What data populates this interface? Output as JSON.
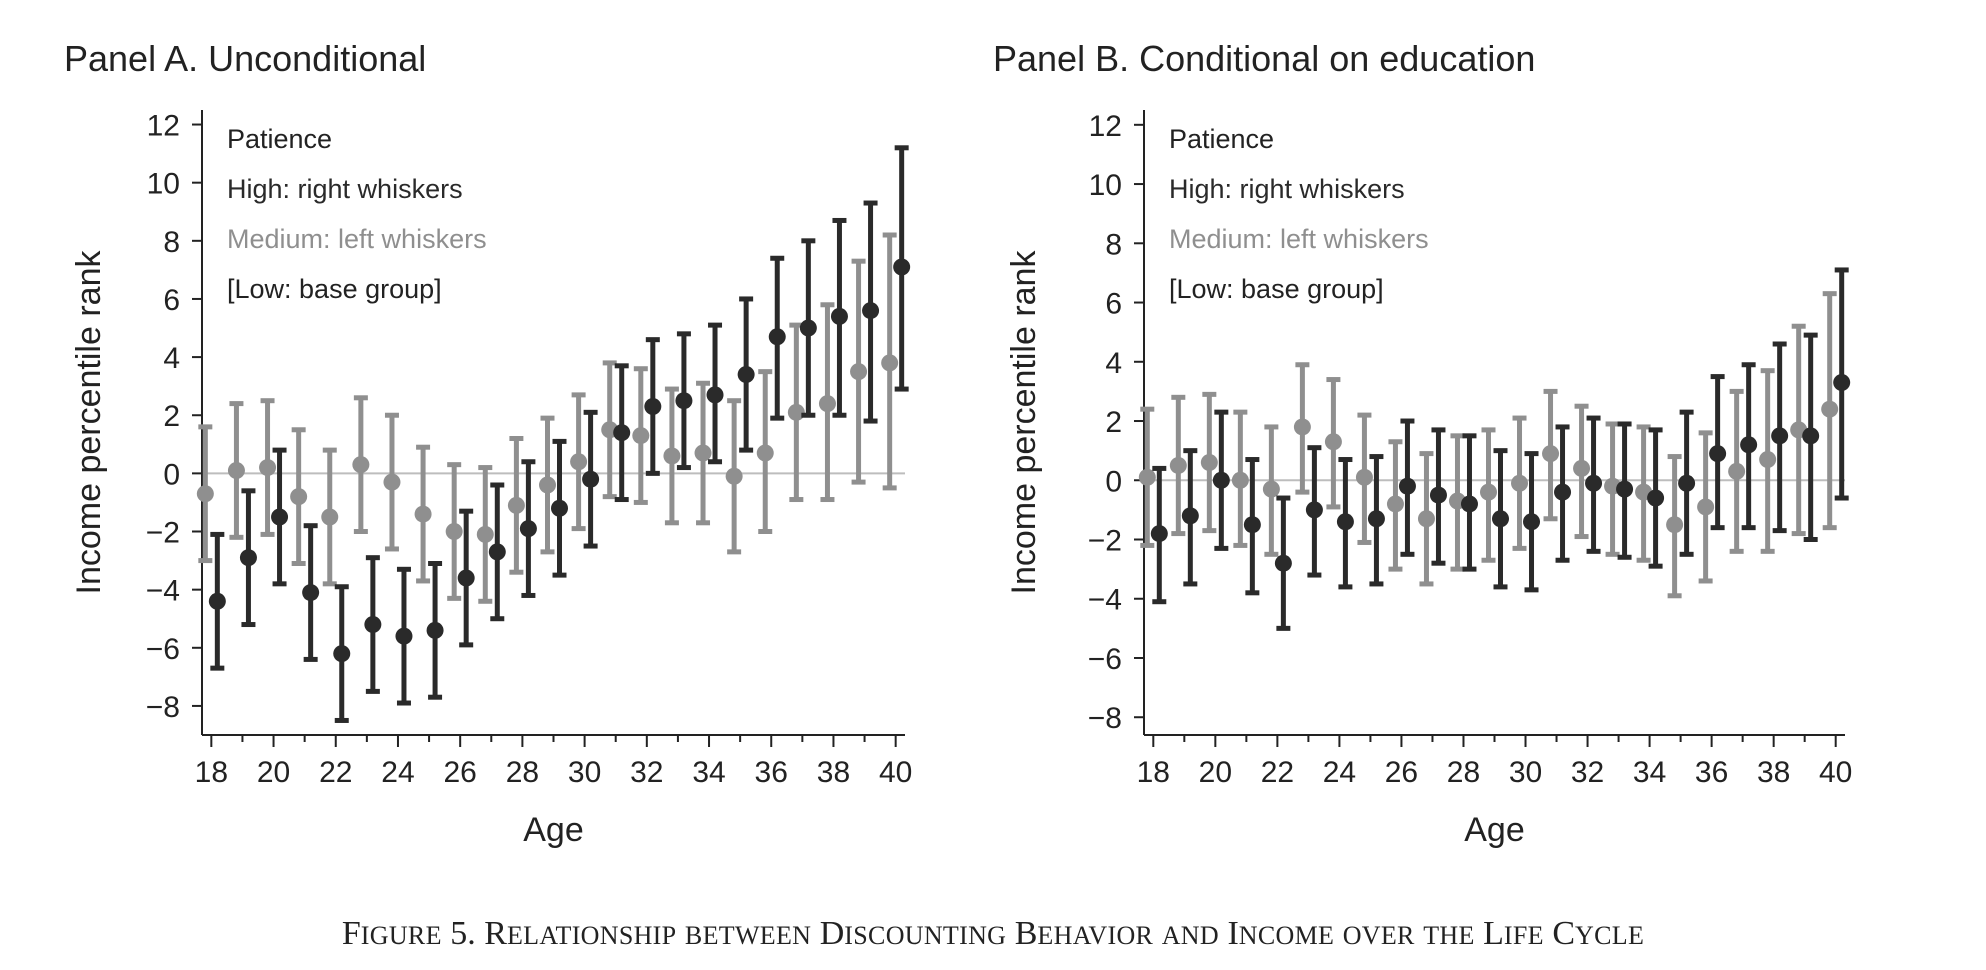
{
  "caption": "Figure 5. Relationship between Discounting Behavior and Income over the Life Cycle",
  "colors": {
    "high": "#2a2a2a",
    "medium": "#8f8f8f",
    "axis": "#222222",
    "zero_line": "#bdbdbd"
  },
  "chart_data": [
    {
      "type": "scatter",
      "title": "Panel A. Unconditional",
      "xlabel": "Age",
      "ylabel": "Income percentile rank",
      "xlim": [
        17.7,
        40.3
      ],
      "ylim": [
        -9,
        12.5
      ],
      "xticks": [
        18,
        20,
        22,
        24,
        26,
        28,
        30,
        32,
        34,
        36,
        38,
        40
      ],
      "yticks": [
        -8,
        -6,
        -4,
        -2,
        0,
        2,
        4,
        6,
        8,
        10,
        12
      ],
      "ytick_labels": [
        "−8",
        "−6",
        "−4",
        "−2",
        "0",
        "2",
        "4",
        "6",
        "8",
        "10",
        "12"
      ],
      "grid": false,
      "zero_line": true,
      "legend": {
        "position": "top-left",
        "title": "Patience",
        "entries": [
          "High: right whiskers",
          "Medium: left whiskers",
          "[Low: base group]"
        ]
      },
      "series": [
        {
          "name": "High: right whiskers",
          "x": [
            18,
            19,
            20,
            21,
            22,
            23,
            24,
            25,
            26,
            27,
            28,
            29,
            30,
            31,
            32,
            33,
            34,
            35,
            36,
            37,
            38,
            39,
            40
          ],
          "y": [
            -4.4,
            -2.9,
            -1.5,
            -4.1,
            -6.2,
            -5.2,
            -5.6,
            -5.4,
            -3.6,
            -2.7,
            -1.9,
            -1.2,
            -0.2,
            1.4,
            2.3,
            2.5,
            2.7,
            3.4,
            4.7,
            5.0,
            5.4,
            5.6,
            7.1
          ],
          "ci_low": [
            -6.7,
            -5.2,
            -3.8,
            -6.4,
            -8.5,
            -7.5,
            -7.9,
            -7.7,
            -5.9,
            -5.0,
            -4.2,
            -3.5,
            -2.5,
            -0.9,
            0.0,
            0.2,
            0.4,
            0.8,
            1.9,
            2.0,
            2.0,
            1.8,
            2.9
          ],
          "ci_high": [
            -2.1,
            -0.6,
            0.8,
            -1.8,
            -3.9,
            -2.9,
            -3.3,
            -3.1,
            -1.3,
            -0.4,
            0.4,
            1.1,
            2.1,
            3.7,
            4.6,
            4.8,
            5.1,
            6.0,
            7.4,
            8.0,
            8.7,
            9.3,
            11.2
          ]
        },
        {
          "name": "Medium: left whiskers",
          "x": [
            18,
            19,
            20,
            21,
            22,
            23,
            24,
            25,
            26,
            27,
            28,
            29,
            30,
            31,
            32,
            33,
            34,
            35,
            36,
            37,
            38,
            39,
            40
          ],
          "y": [
            -0.7,
            0.1,
            0.2,
            -0.8,
            -1.5,
            0.3,
            -0.3,
            -1.4,
            -2.0,
            -2.1,
            -1.1,
            -0.4,
            0.4,
            1.5,
            1.3,
            0.6,
            0.7,
            -0.1,
            0.7,
            2.1,
            2.4,
            3.5,
            3.8
          ],
          "ci_low": [
            -3.0,
            -2.2,
            -2.1,
            -3.1,
            -3.8,
            -2.0,
            -2.6,
            -3.7,
            -4.3,
            -4.4,
            -3.4,
            -2.7,
            -1.9,
            -0.8,
            -1.0,
            -1.7,
            -1.7,
            -2.7,
            -2.0,
            -0.9,
            -0.9,
            -0.3,
            -0.5
          ],
          "ci_high": [
            1.6,
            2.4,
            2.5,
            1.5,
            0.8,
            2.6,
            2.0,
            0.9,
            0.3,
            0.2,
            1.2,
            1.9,
            2.7,
            3.8,
            3.6,
            2.9,
            3.1,
            2.5,
            3.5,
            5.1,
            5.8,
            7.3,
            8.2
          ]
        }
      ]
    },
    {
      "type": "scatter",
      "title": "Panel B. Conditional on education",
      "xlabel": "Age",
      "ylabel": "Income percentile rank",
      "xlim": [
        17.7,
        40.3
      ],
      "ylim": [
        -8.6,
        12.5
      ],
      "xticks": [
        18,
        20,
        22,
        24,
        26,
        28,
        30,
        32,
        34,
        36,
        38,
        40
      ],
      "yticks": [
        -8,
        -6,
        -4,
        -2,
        0,
        2,
        4,
        6,
        8,
        10,
        12
      ],
      "ytick_labels": [
        "−8",
        "−6",
        "−4",
        "−2",
        "0",
        "2",
        "4",
        "6",
        "8",
        "10",
        "12"
      ],
      "grid": false,
      "zero_line": true,
      "legend": {
        "position": "top-left",
        "title": "Patience",
        "entries": [
          "High: right whiskers",
          "Medium: left whiskers",
          "[Low: base group]"
        ]
      },
      "series": [
        {
          "name": "High: right whiskers",
          "x": [
            18,
            19,
            20,
            21,
            22,
            23,
            24,
            25,
            26,
            27,
            28,
            29,
            30,
            31,
            32,
            33,
            34,
            35,
            36,
            37,
            38,
            39,
            40
          ],
          "y": [
            -1.8,
            -1.2,
            0.0,
            -1.5,
            -2.8,
            -1.0,
            -1.4,
            -1.3,
            -0.2,
            -0.5,
            -0.8,
            -1.3,
            -1.4,
            -0.4,
            -0.1,
            -0.3,
            -0.6,
            -0.1,
            0.9,
            1.2,
            1.5,
            1.5,
            3.3
          ],
          "ci_low": [
            -4.1,
            -3.5,
            -2.3,
            -3.8,
            -5.0,
            -3.2,
            -3.6,
            -3.5,
            -2.5,
            -2.8,
            -3.0,
            -3.6,
            -3.7,
            -2.7,
            -2.4,
            -2.6,
            -2.9,
            -2.5,
            -1.6,
            -1.6,
            -1.7,
            -2.0,
            -0.6
          ],
          "ci_high": [
            0.4,
            1.0,
            2.3,
            0.7,
            -0.6,
            1.1,
            0.7,
            0.8,
            2.0,
            1.7,
            1.5,
            1.0,
            0.9,
            1.8,
            2.1,
            1.9,
            1.7,
            2.3,
            3.5,
            3.9,
            4.6,
            4.9,
            7.1
          ]
        },
        {
          "name": "Medium: left whiskers",
          "x": [
            18,
            19,
            20,
            21,
            22,
            23,
            24,
            25,
            26,
            27,
            28,
            29,
            30,
            31,
            32,
            33,
            34,
            35,
            36,
            37,
            38,
            39,
            40
          ],
          "y": [
            0.1,
            0.5,
            0.6,
            0.0,
            -0.3,
            1.8,
            1.3,
            0.1,
            -0.8,
            -1.3,
            -0.7,
            -0.4,
            -0.1,
            0.9,
            0.4,
            -0.2,
            -0.4,
            -1.5,
            -0.9,
            0.3,
            0.7,
            1.7,
            2.4
          ],
          "ci_low": [
            -2.2,
            -1.8,
            -1.7,
            -2.2,
            -2.5,
            -0.4,
            -0.9,
            -2.1,
            -3.0,
            -3.5,
            -3.0,
            -2.7,
            -2.3,
            -1.3,
            -1.9,
            -2.5,
            -2.7,
            -3.9,
            -3.4,
            -2.4,
            -2.4,
            -1.8,
            -1.6
          ],
          "ci_high": [
            2.4,
            2.8,
            2.9,
            2.3,
            1.8,
            3.9,
            3.4,
            2.2,
            1.3,
            0.9,
            1.5,
            1.7,
            2.1,
            3.0,
            2.5,
            1.9,
            1.8,
            0.8,
            1.6,
            3.0,
            3.7,
            5.2,
            6.3
          ]
        }
      ]
    }
  ]
}
